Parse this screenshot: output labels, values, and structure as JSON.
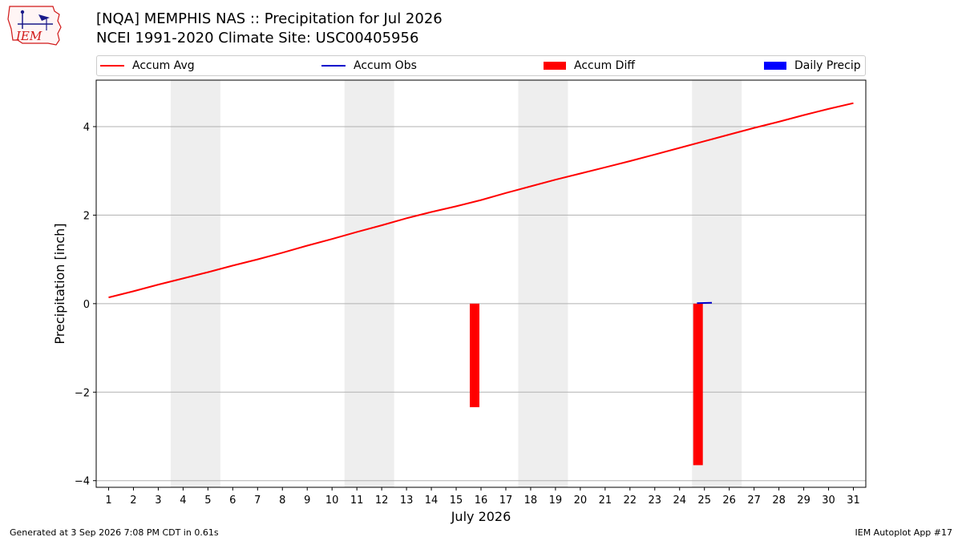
{
  "header": {
    "title": "[NQA] MEMPHIS NAS :: Precipitation for Jul 2026",
    "subtitle": "NCEI 1991-2020 Climate Site: USC00405956",
    "logo_text": "IEM"
  },
  "footer": {
    "left": "Generated at 3 Sep 2026 7:08 PM CDT in 0.61s",
    "right": "IEM Autoplot App #17"
  },
  "colors": {
    "accum_avg": "#ff0000",
    "accum_obs": "#0000cc",
    "accum_diff": "#ff0000",
    "daily_precip": "#0000ff",
    "weekend_shade": "#eeeeee",
    "grid": "#b0b0b0"
  },
  "legend": [
    {
      "label": "Accum Avg",
      "kind": "line",
      "color": "#ff0000"
    },
    {
      "label": "Accum Obs",
      "kind": "line",
      "color": "#0000cc"
    },
    {
      "label": "Accum Diff",
      "kind": "box",
      "color": "#ff0000"
    },
    {
      "label": "Daily Precip",
      "kind": "box",
      "color": "#0000ff"
    }
  ],
  "chart_data": {
    "type": "line",
    "xlabel": "July 2026",
    "ylabel": "Precipitation [inch]",
    "xlim": [
      0.5,
      31.5
    ],
    "ylim": [
      -4.15,
      5.05
    ],
    "grid": "horizontal",
    "legend_position": "top",
    "x_ticks": [
      1,
      2,
      3,
      4,
      5,
      6,
      7,
      8,
      9,
      10,
      11,
      12,
      13,
      14,
      15,
      16,
      17,
      18,
      19,
      20,
      21,
      22,
      23,
      24,
      25,
      26,
      27,
      28,
      29,
      30,
      31
    ],
    "y_ticks": [
      -4,
      -2,
      0,
      2,
      4
    ],
    "y_tick_labels": [
      "−4",
      "−2",
      "0",
      "2",
      "4"
    ],
    "weekend_shading": [
      [
        3.5,
        5.5
      ],
      [
        10.5,
        12.5
      ],
      [
        17.5,
        19.5
      ],
      [
        24.5,
        26.5
      ]
    ],
    "series": [
      {
        "name": "Accum Avg",
        "type": "line",
        "x": [
          1,
          2,
          3,
          4,
          5,
          6,
          7,
          8,
          9,
          10,
          11,
          12,
          13,
          14,
          15,
          16,
          17,
          18,
          19,
          20,
          21,
          22,
          23,
          24,
          25,
          26,
          27,
          28,
          29,
          30,
          31
        ],
        "values": [
          0.14,
          0.28,
          0.43,
          0.57,
          0.71,
          0.86,
          1.0,
          1.15,
          1.31,
          1.46,
          1.62,
          1.77,
          1.93,
          2.07,
          2.2,
          2.34,
          2.5,
          2.65,
          2.8,
          2.94,
          3.08,
          3.22,
          3.37,
          3.52,
          3.67,
          3.82,
          3.97,
          4.11,
          4.26,
          4.4,
          4.53
        ]
      },
      {
        "name": "Accum Obs",
        "type": "line",
        "x": [
          24.7,
          25.3
        ],
        "values": [
          0.01,
          0.02
        ]
      },
      {
        "name": "Accum Diff",
        "type": "bar",
        "x": [
          16,
          25
        ],
        "values": [
          -2.34,
          -3.65
        ]
      },
      {
        "name": "Daily Precip",
        "type": "bar",
        "x": [],
        "values": []
      }
    ]
  }
}
